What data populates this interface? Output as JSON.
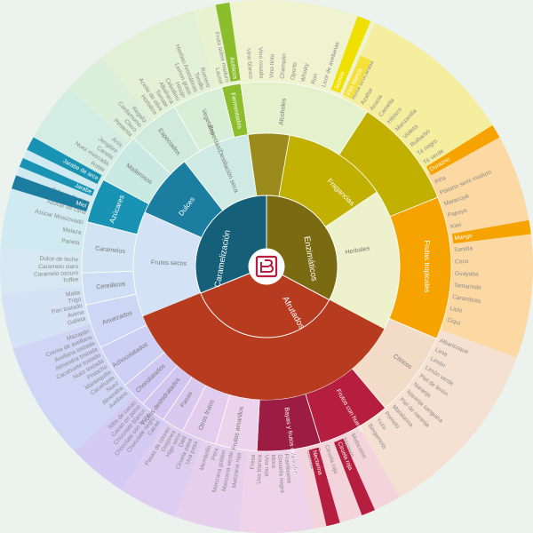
{
  "inner": [
    {
      "label": "Enzimáticos",
      "color": "#7a6a12",
      "text_color": "#ffffff"
    },
    {
      "label": "Afrutados",
      "color": "#b63b1f",
      "text_color": "#ffffff"
    },
    {
      "label": "Caramelización",
      "color": "#155f78",
      "text_color": "#ffffff"
    }
  ],
  "middle": [
    {
      "label": "Fragancias",
      "color": "#c2b000",
      "text_color": "#ffffff"
    },
    {
      "label": "Frutas tropicales",
      "color": "#f6a300",
      "text_color": "#ffffff"
    },
    {
      "label": "Cítricos",
      "color": "#f2dcc8",
      "text_color": "#777777"
    },
    {
      "label": "Frutos con hueso",
      "color": "#b51e3f",
      "text_color": "#ffffff"
    },
    {
      "label": "Bayas y frutos del bosque",
      "color": "#9c1c44",
      "text_color": "#ffffff"
    },
    {
      "label": "Frutos amarillos",
      "color": "#ecd3ec",
      "text_color": "#777777"
    },
    {
      "label": "Otros frutos",
      "color": "#e3cdee",
      "text_color": "#777777"
    },
    {
      "label": "Pasas",
      "color": "#dac9ef",
      "text_color": "#777777"
    },
    {
      "label": "Frutos deshidratados",
      "color": "#d2c6f1",
      "text_color": "#777777"
    },
    {
      "label": "Chocolatados",
      "color": "#cfc8f3",
      "text_color": "#777777"
    },
    {
      "label": "Achocolatados",
      "color": "#ccd0f4",
      "text_color": "#777777"
    },
    {
      "label": "Anuezados",
      "color": "#cdd6f4",
      "text_color": "#777777"
    },
    {
      "label": "Cereálicos",
      "color": "#d0def5",
      "text_color": "#777777"
    },
    {
      "label": "Caramelos",
      "color": "#d2e4f3",
      "text_color": "#777777"
    },
    {
      "label": "Azúcares",
      "color": "#1893b3",
      "text_color": "#ffffff"
    },
    {
      "label": "Maderosos",
      "color": "#cbe9e3",
      "text_color": "#777777"
    },
    {
      "label": "Especiados",
      "color": "#d0ebde",
      "text_color": "#777777"
    },
    {
      "label": "Vegetales",
      "color": "#d9eed6",
      "text_color": "#777777"
    },
    {
      "label": "Fermentados",
      "color": "#8bbd2c",
      "text_color": "#ffffff"
    },
    {
      "label": "Alcoholes",
      "color": "#e4f1cd",
      "text_color": "#777777"
    }
  ],
  "middle_inner": [
    {
      "label": "Herbales",
      "color": "#eef2cc",
      "text_color": "#777777"
    },
    {
      "label": "Frutos secos",
      "color": "#d3e2f5",
      "text_color": "#777777"
    },
    {
      "label": "Dulces",
      "color": "#1b7ea0",
      "text_color": "#ffffff"
    },
    {
      "label": "Especias/Destilación seca",
      "color": "#cfeae2",
      "text_color": "#777777"
    }
  ],
  "outer_groups": [
    {
      "fill": "#f4ee9e",
      "items": [
        "Rosa azucarada",
        "Azahar",
        "Acacia",
        "Camelia",
        "Hibisco",
        "Manzanilla",
        "Violeta",
        "Ruibarbo",
        "Té negro",
        "Té verde"
      ],
      "highlights": [
        {
          "label": "Jazmín",
          "color": "#f0e000"
        },
        {
          "label": "Flor blanca",
          "color": "#f5e03a"
        }
      ]
    },
    {
      "fill": "#fcd9a3",
      "items": [
        "Piña",
        "Plátano semi maduro",
        "Maracuyá",
        "Papaya",
        "Kiwi",
        "Melón",
        "Sandía",
        "Coco",
        "Guayaba",
        "Tamarindo",
        "Carambola",
        "Lichi",
        "Ciquí"
      ],
      "highlights": [
        {
          "label": "Durazno",
          "color": "#f6a300"
        },
        {
          "label": "Mango",
          "color": "#f6a300"
        }
      ]
    },
    {
      "fill": "#f5e1d2",
      "items": [
        "Albaricoque",
        "Lima",
        "Limón",
        "Limón verde",
        "Piel de limón",
        "Naranja",
        "Naranja sanguina",
        "Piel de naranja",
        "Mandarina",
        "Pomelo",
        "Yuzu",
        "Bergamota"
      ]
    },
    {
      "fill": "#f4d4dc",
      "items": [
        "Melocotón",
        "Níspero",
        "Ciruela amarilla",
        "Ciruela roja",
        "Cereza",
        "Guinda"
      ],
      "highlights": [
        {
          "label": "Ciruela roja",
          "color": "#b51e3f"
        },
        {
          "label": "Nectarina",
          "color": "#b51e3f"
        }
      ]
    },
    {
      "fill": "#eed3ea",
      "items": [
        "Arándano",
        "Frambuesa",
        "Grosella negra",
        "Mora",
        "Uva roja",
        "Uva blanca",
        "Fresa"
      ]
    },
    {
      "fill": "#e6d0ee",
      "items": [
        "Manzana roja",
        "Manzana verde",
        "Manzana golden",
        "Pera",
        "Membrillo"
      ]
    },
    {
      "fill": "#ddcdf0",
      "items": [
        "Uva pasa",
        "Ciruela pasa",
        "Dátil",
        "Higo seco",
        "Orejones",
        "Pasas de corinto"
      ]
    },
    {
      "fill": "#d3cbf3",
      "items": [
        "Cacao",
        "Chocolate negro",
        "Chocolate con leche",
        "Chocolate blanco",
        "Cacao en polvo",
        "Nibs de cacao"
      ]
    },
    {
      "fill": "#cfd5f4",
      "items": [
        "Avellana",
        "Almendra",
        "Nuez",
        "Cacahuete",
        "Mantequilla",
        "Pistacho",
        "Nuez tostada",
        "Cacahuete tostado",
        "Almendra tostada",
        "Avellana tostada",
        "Crema de avellana",
        "Mazapán"
      ]
    },
    {
      "fill": "#d5e2f5",
      "items": [
        "Galleta",
        "Avena",
        "Pan tostado",
        "Trigo",
        "Malta"
      ]
    },
    {
      "fill": "#d8e8f3",
      "items": [
        "Toffee",
        "Caramelo oscuro",
        "Caramelo claro",
        "Dulce de leche"
      ]
    },
    {
      "fill": "#cfeaf0",
      "items": [
        "Panela",
        "Melaza",
        "Azúcar Moscovado",
        "Azúcar de caña",
        "Tabaco de pipa",
        "Tabaco"
      ],
      "highlights": [
        {
          "label": "Miel",
          "color": "#1b7ea0"
        },
        {
          "label": "Jarabe",
          "color": "#1893b3"
        },
        {
          "label": "Jarabe de arce",
          "color": "#1893b3"
        }
      ]
    },
    {
      "fill": "#d4ede4",
      "items": [
        "Cedro",
        "Roble",
        "Nuez moscada",
        "Canela",
        "Jengibre",
        "Anís"
      ]
    },
    {
      "fill": "#dbefdb",
      "items": [
        "Pimienta",
        "Clavo",
        "Cardamomo",
        "Regaliz"
      ]
    },
    {
      "fill": "#e2f1d6",
      "items": [
        "Hortaliza",
        "Aceite de oliva",
        "Tomate",
        "Albahaca",
        "Cebollino",
        "Hinojo",
        "Lemon grass",
        "Hierbas Aromáticas",
        "Tomillo",
        "Romero"
      ]
    },
    {
      "fill": "#e9f3d2",
      "items": [
        "Laurel",
        "Fruto sobre maduro",
        "Yogur"
      ],
      "highlights": [
        {
          "label": "Acéticos",
          "color": "#8bbd2c"
        }
      ]
    },
    {
      "fill": "#f0f3cf",
      "items": [
        "Vino blanco",
        "Vino rosado",
        "Vino tinto",
        "Champán",
        "Oporto",
        "Whisky",
        "Ron",
        "Licor de avellanas",
        "Licor de almendras"
      ]
    }
  ],
  "logo": {
    "name": "flavor-wheel-logo"
  }
}
